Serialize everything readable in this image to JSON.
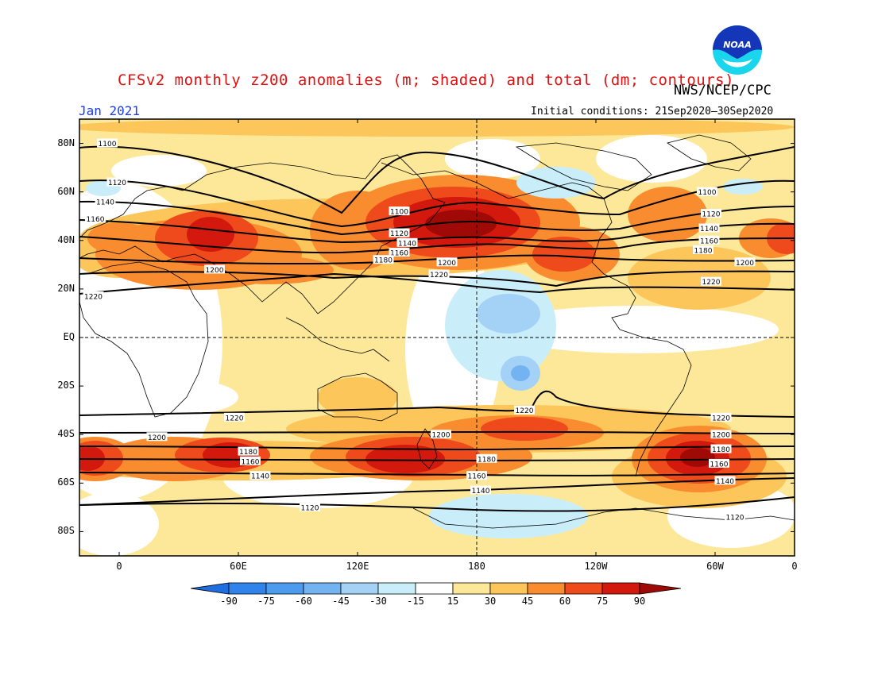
{
  "title": "CFSv2 monthly z200 anomalies (m; shaded) and total (dm; contours)",
  "agency": "NWS/NCEP/CPC",
  "month": "Jan 2021",
  "initial_conditions": "Initial conditions: 21Sep2020–30Sep2020",
  "logo_text": "NOAA",
  "lat_labels": [
    "80N",
    "60N",
    "40N",
    "20N",
    "EQ",
    "20S",
    "40S",
    "60S",
    "80S"
  ],
  "lon_labels": [
    "0",
    "60E",
    "120E",
    "180",
    "120W",
    "60W",
    "0"
  ],
  "colorbar": {
    "labels": [
      "-90",
      "-75",
      "-60",
      "-45",
      "-30",
      "-15",
      "15",
      "30",
      "45",
      "60",
      "75",
      "90"
    ],
    "colors": [
      "#1f6ee0",
      "#2f83ea",
      "#4d9bee",
      "#74b3f2",
      "#a4d2f6",
      "#c9eefa",
      "#ffffff",
      "#fde89a",
      "#fcc65a",
      "#f98c2e",
      "#ee4a1c",
      "#d3180e",
      "#a00a06"
    ]
  },
  "contour_labels": [
    {
      "value": "1100",
      "lon": -6,
      "lat": 80
    },
    {
      "value": "1120",
      "lon": -1,
      "lat": 64
    },
    {
      "value": "1140",
      "lon": -7,
      "lat": 56
    },
    {
      "value": "1160",
      "lon": -12,
      "lat": 49
    },
    {
      "value": "1200",
      "lon": 48,
      "lat": 28
    },
    {
      "value": "1220",
      "lon": -13,
      "lat": 17
    },
    {
      "value": "1100",
      "lon": 141,
      "lat": 52
    },
    {
      "value": "1120",
      "lon": 141,
      "lat": 43
    },
    {
      "value": "1140",
      "lon": 145,
      "lat": 39
    },
    {
      "value": "1160",
      "lon": 141,
      "lat": 35
    },
    {
      "value": "1180",
      "lon": 133,
      "lat": 32
    },
    {
      "value": "1200",
      "lon": 165,
      "lat": 31
    },
    {
      "value": "1220",
      "lon": 161,
      "lat": 26
    },
    {
      "value": "1100",
      "lon": -64,
      "lat": 60
    },
    {
      "value": "1120",
      "lon": -62,
      "lat": 51
    },
    {
      "value": "1140",
      "lon": -63,
      "lat": 45
    },
    {
      "value": "1160",
      "lon": -63,
      "lat": 40
    },
    {
      "value": "1180",
      "lon": -66,
      "lat": 36
    },
    {
      "value": "1200",
      "lon": -45,
      "lat": 31
    },
    {
      "value": "1220",
      "lon": -62,
      "lat": 23
    },
    {
      "value": "1220",
      "lon": 58,
      "lat": -33
    },
    {
      "value": "1220",
      "lon": -156,
      "lat": -30
    },
    {
      "value": "1220",
      "lon": -57,
      "lat": -33
    },
    {
      "value": "1200",
      "lon": 19,
      "lat": -41
    },
    {
      "value": "1200",
      "lon": 162,
      "lat": -40
    },
    {
      "value": "1200",
      "lon": -57,
      "lat": -40
    },
    {
      "value": "1180",
      "lon": 65,
      "lat": -47
    },
    {
      "value": "1180",
      "lon": -175,
      "lat": -50
    },
    {
      "value": "1180",
      "lon": -57,
      "lat": -46
    },
    {
      "value": "1160",
      "lon": 66,
      "lat": -51
    },
    {
      "value": "1160",
      "lon": 180,
      "lat": -57
    },
    {
      "value": "1160",
      "lon": -58,
      "lat": -52
    },
    {
      "value": "1140",
      "lon": 71,
      "lat": -57
    },
    {
      "value": "1140",
      "lon": -178,
      "lat": -63
    },
    {
      "value": "1140",
      "lon": -55,
      "lat": -59
    },
    {
      "value": "1120",
      "lon": 96,
      "lat": -70
    },
    {
      "value": "1120",
      "lon": -50,
      "lat": -74
    }
  ]
}
